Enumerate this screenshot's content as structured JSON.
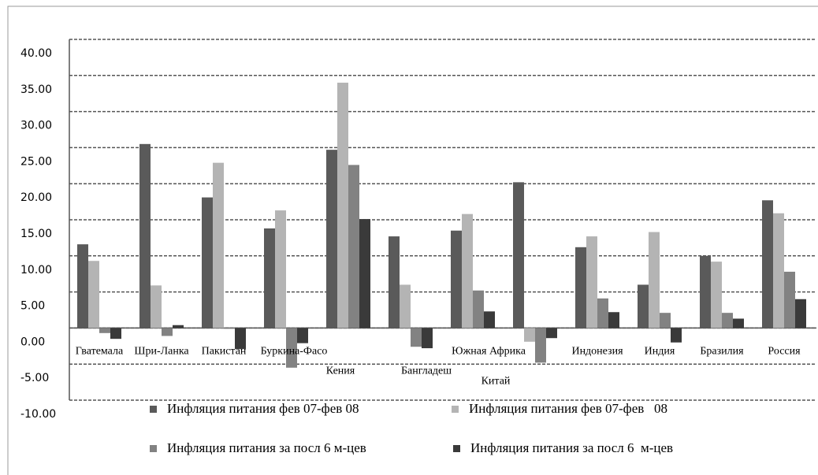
{
  "chart_data": {
    "type": "bar",
    "categories": [
      "Гватемала",
      "Шри-Ланка",
      "Пакистан",
      "Буркина-Фасо",
      "Кения",
      "Бангладеш",
      "Южная Африка",
      "Китай",
      "Индонезия",
      "Индия",
      "Бразилия",
      "Россия"
    ],
    "series": [
      {
        "name": "Инфляция питания фев 07-фев 08",
        "color": "#5a5a5a",
        "values": [
          11.6,
          25.5,
          18.1,
          13.8,
          24.7,
          12.7,
          13.5,
          20.2,
          11.2,
          6.0,
          10.0,
          17.7
        ]
      },
      {
        "name": "Инфляция питания фев 07-фев   08",
        "color": "#b4b4b4",
        "values": [
          9.3,
          5.9,
          22.9,
          16.3,
          34.0,
          6.0,
          15.8,
          -1.9,
          12.7,
          13.3,
          9.2,
          15.9
        ]
      },
      {
        "name": "Инфляция питания за посл 6 м-цев",
        "color": "#828282",
        "values": [
          -0.7,
          -1.1,
          -0.1,
          -5.5,
          22.6,
          -2.6,
          5.2,
          -4.8,
          4.1,
          2.1,
          2.1,
          7.8
        ]
      },
      {
        "name": "Инфляция питания за посл 6  м-цев",
        "color": "#3a3a3a",
        "values": [
          -1.5,
          0.4,
          -2.9,
          -2.1,
          15.1,
          -2.8,
          2.3,
          -1.4,
          2.2,
          -2.0,
          1.3,
          4.0
        ]
      }
    ],
    "ylim": [
      -10,
      40
    ],
    "yticks": [
      {
        "value": 40,
        "label": "40.00"
      },
      {
        "value": 35,
        "label": "35.00"
      },
      {
        "value": 30,
        "label": "30.00"
      },
      {
        "value": 25,
        "label": "25.00"
      },
      {
        "value": 20,
        "label": "20.00"
      },
      {
        "value": 15,
        "label": "15.00"
      },
      {
        "value": 10,
        "label": "10.00"
      },
      {
        "value": 5,
        "label": "5.00"
      },
      {
        "value": 0,
        "label": "0.00"
      },
      {
        "value": -5,
        "label": "-5.00"
      },
      {
        "value": -10,
        "label": "-10.00"
      }
    ],
    "grid": true
  }
}
